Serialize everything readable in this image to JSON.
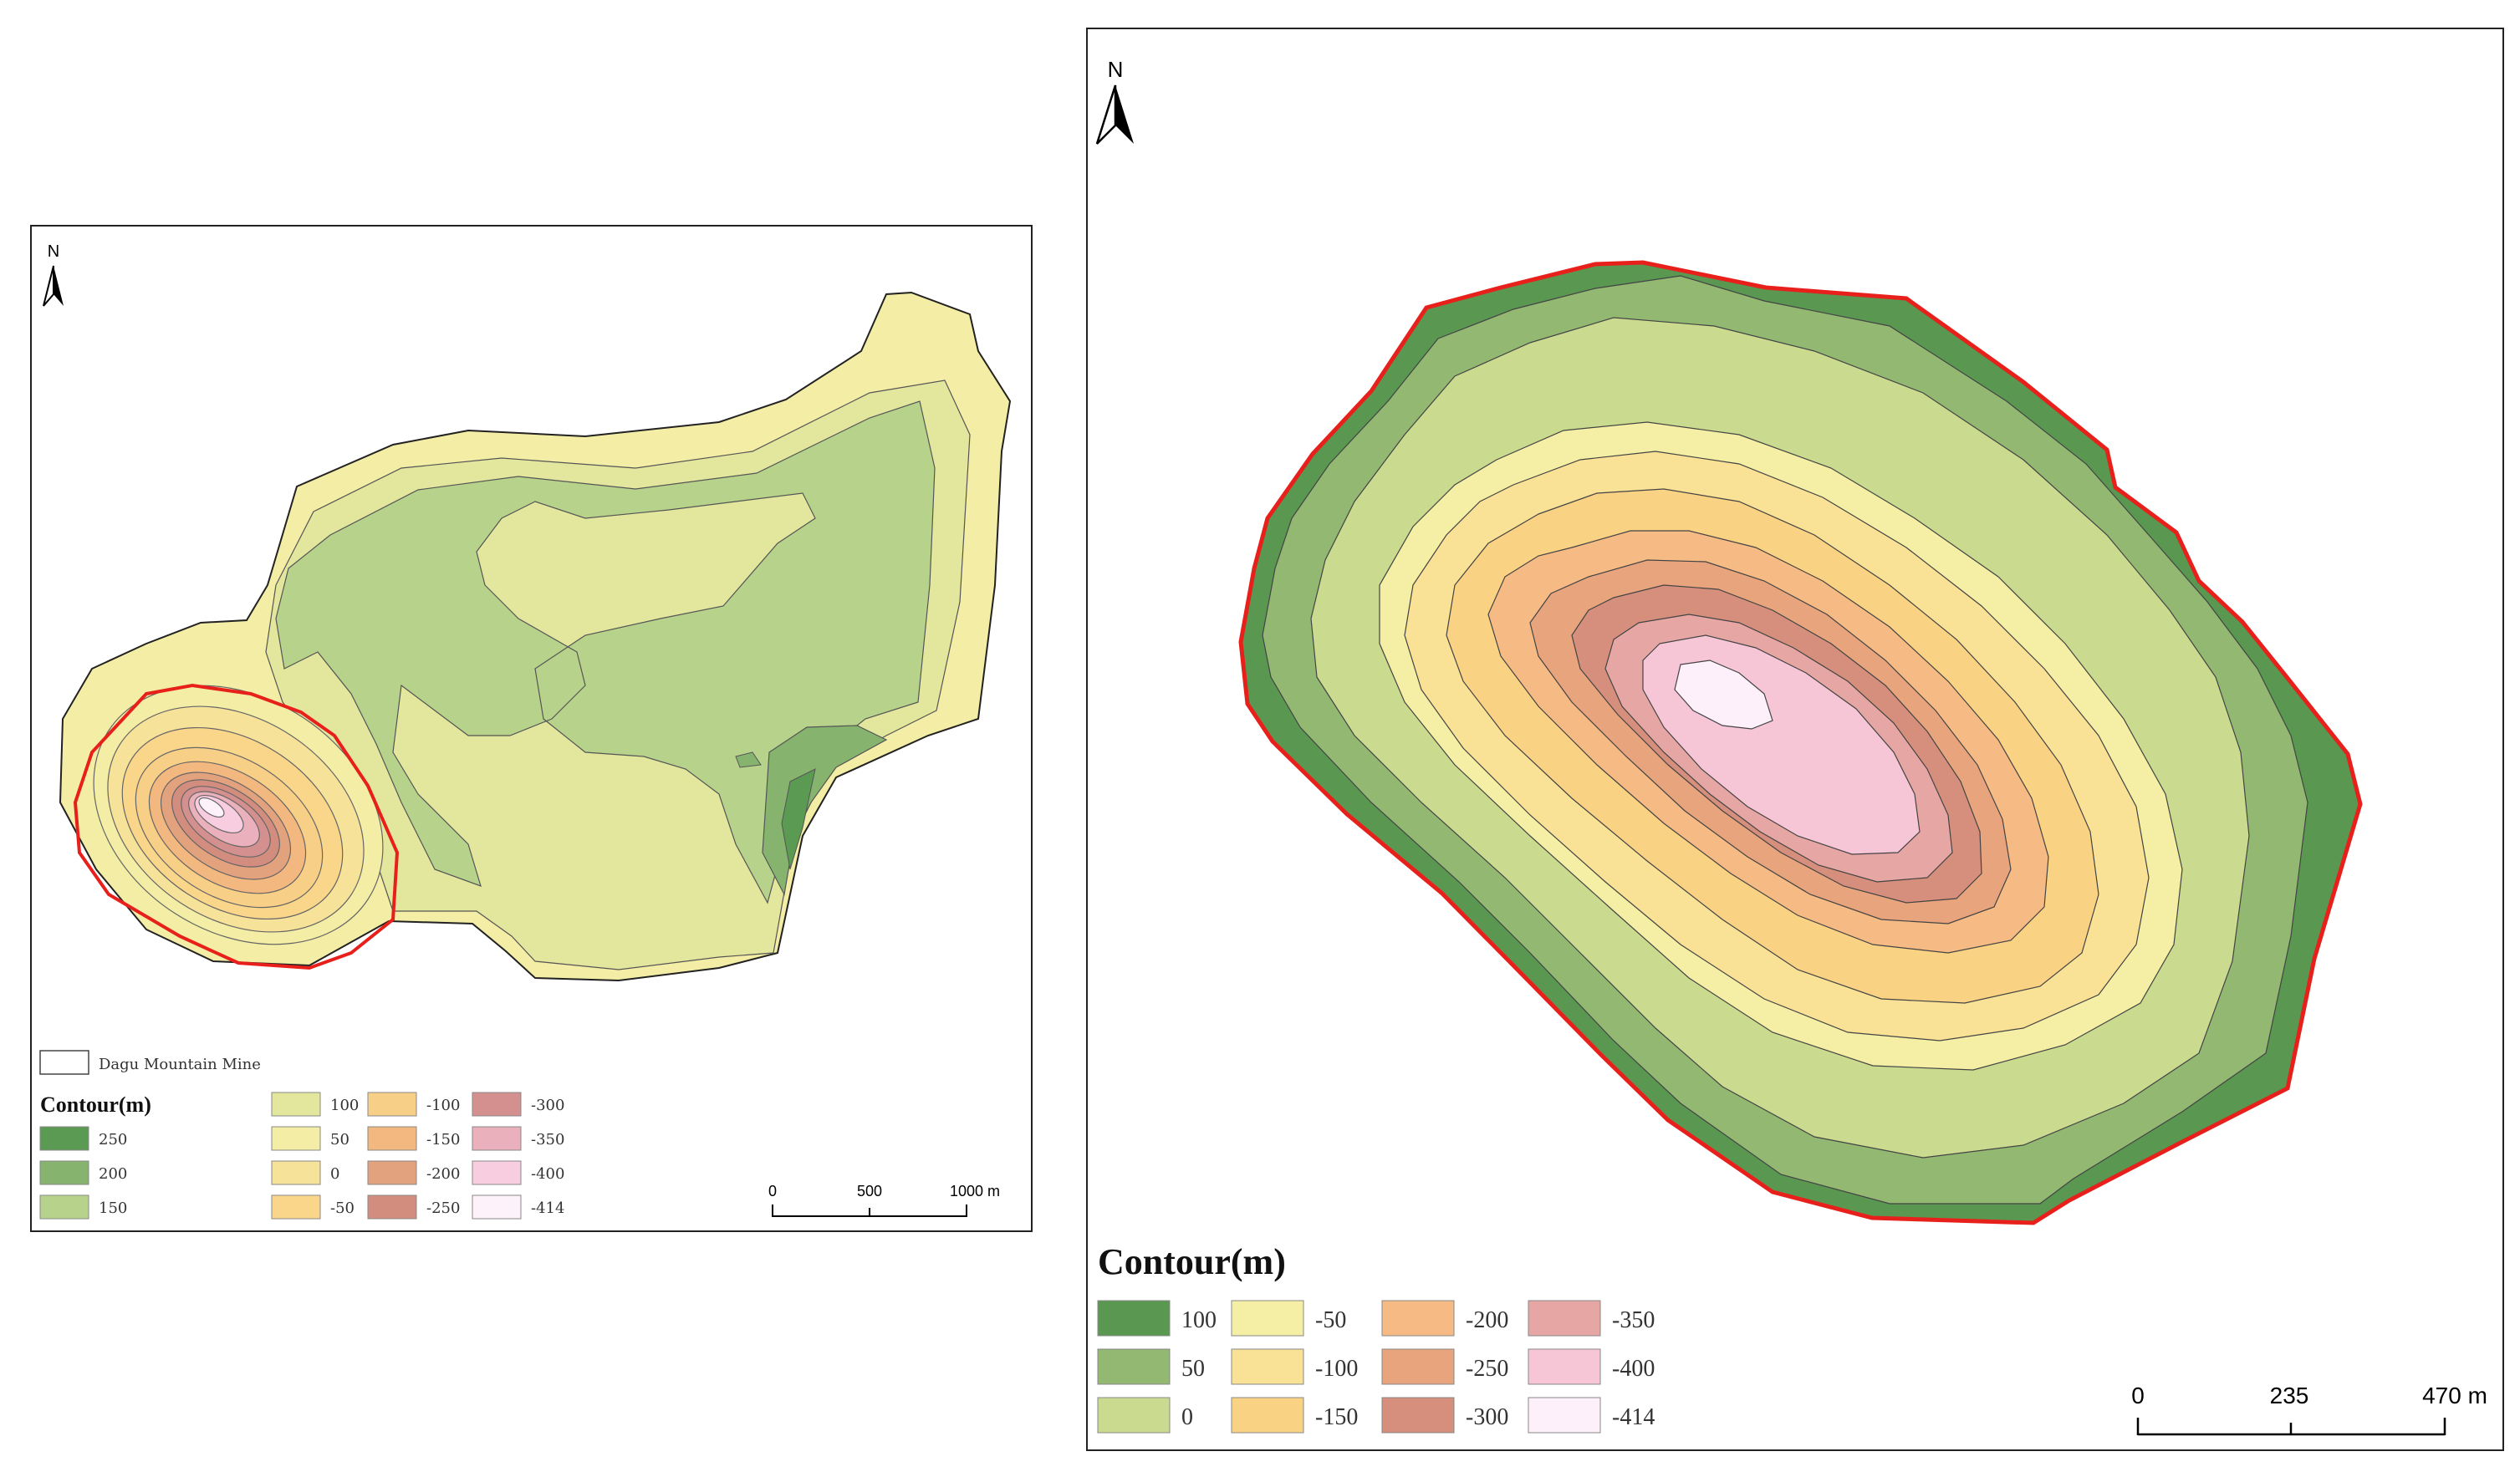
{
  "north_label": "N",
  "left_map": {
    "mine_label": "Dagu Mountain Mine",
    "legend_title": "Contour(m)",
    "legend": [
      {
        "label": "250",
        "color": "#5b9a52"
      },
      {
        "label": "200",
        "color": "#86b46e"
      },
      {
        "label": "150",
        "color": "#b7d38b"
      },
      {
        "label": "100",
        "color": "#e3e79d"
      },
      {
        "label": "50",
        "color": "#f3eda5"
      },
      {
        "label": "0",
        "color": "#f7e29a"
      },
      {
        "label": "-50",
        "color": "#fad68b"
      },
      {
        "label": "-100",
        "color": "#f8cf87"
      },
      {
        "label": "-150",
        "color": "#f3b880"
      },
      {
        "label": "-200",
        "color": "#e3a27e"
      },
      {
        "label": "-250",
        "color": "#d28d7f"
      },
      {
        "label": "-300",
        "color": "#d4908e"
      },
      {
        "label": "-350",
        "color": "#eab0bb"
      },
      {
        "label": "-400",
        "color": "#f8cde0"
      },
      {
        "label": "-414",
        "color": "#fdf1fa"
      }
    ],
    "scale": [
      "0",
      "500",
      "1000 m"
    ]
  },
  "right_map": {
    "legend_title": "Contour(m)",
    "legend": [
      {
        "label": "100",
        "color": "#5a9751"
      },
      {
        "label": "50",
        "color": "#92b872"
      },
      {
        "label": "0",
        "color": "#cadb8f"
      },
      {
        "label": "-50",
        "color": "#f5eea5"
      },
      {
        "label": "-100",
        "color": "#f9e196"
      },
      {
        "label": "-150",
        "color": "#fad284"
      },
      {
        "label": "-200",
        "color": "#f6bb84"
      },
      {
        "label": "-250",
        "color": "#e7a47d"
      },
      {
        "label": "-300",
        "color": "#d68f7c"
      },
      {
        "label": "-350",
        "color": "#e6a6a4"
      },
      {
        "label": "-400",
        "color": "#f6c6d6"
      },
      {
        "label": "-414",
        "color": "#fdf0fa"
      }
    ],
    "scale": [
      "0",
      "235",
      "470 m"
    ]
  },
  "boundary_color": "#e8201c"
}
